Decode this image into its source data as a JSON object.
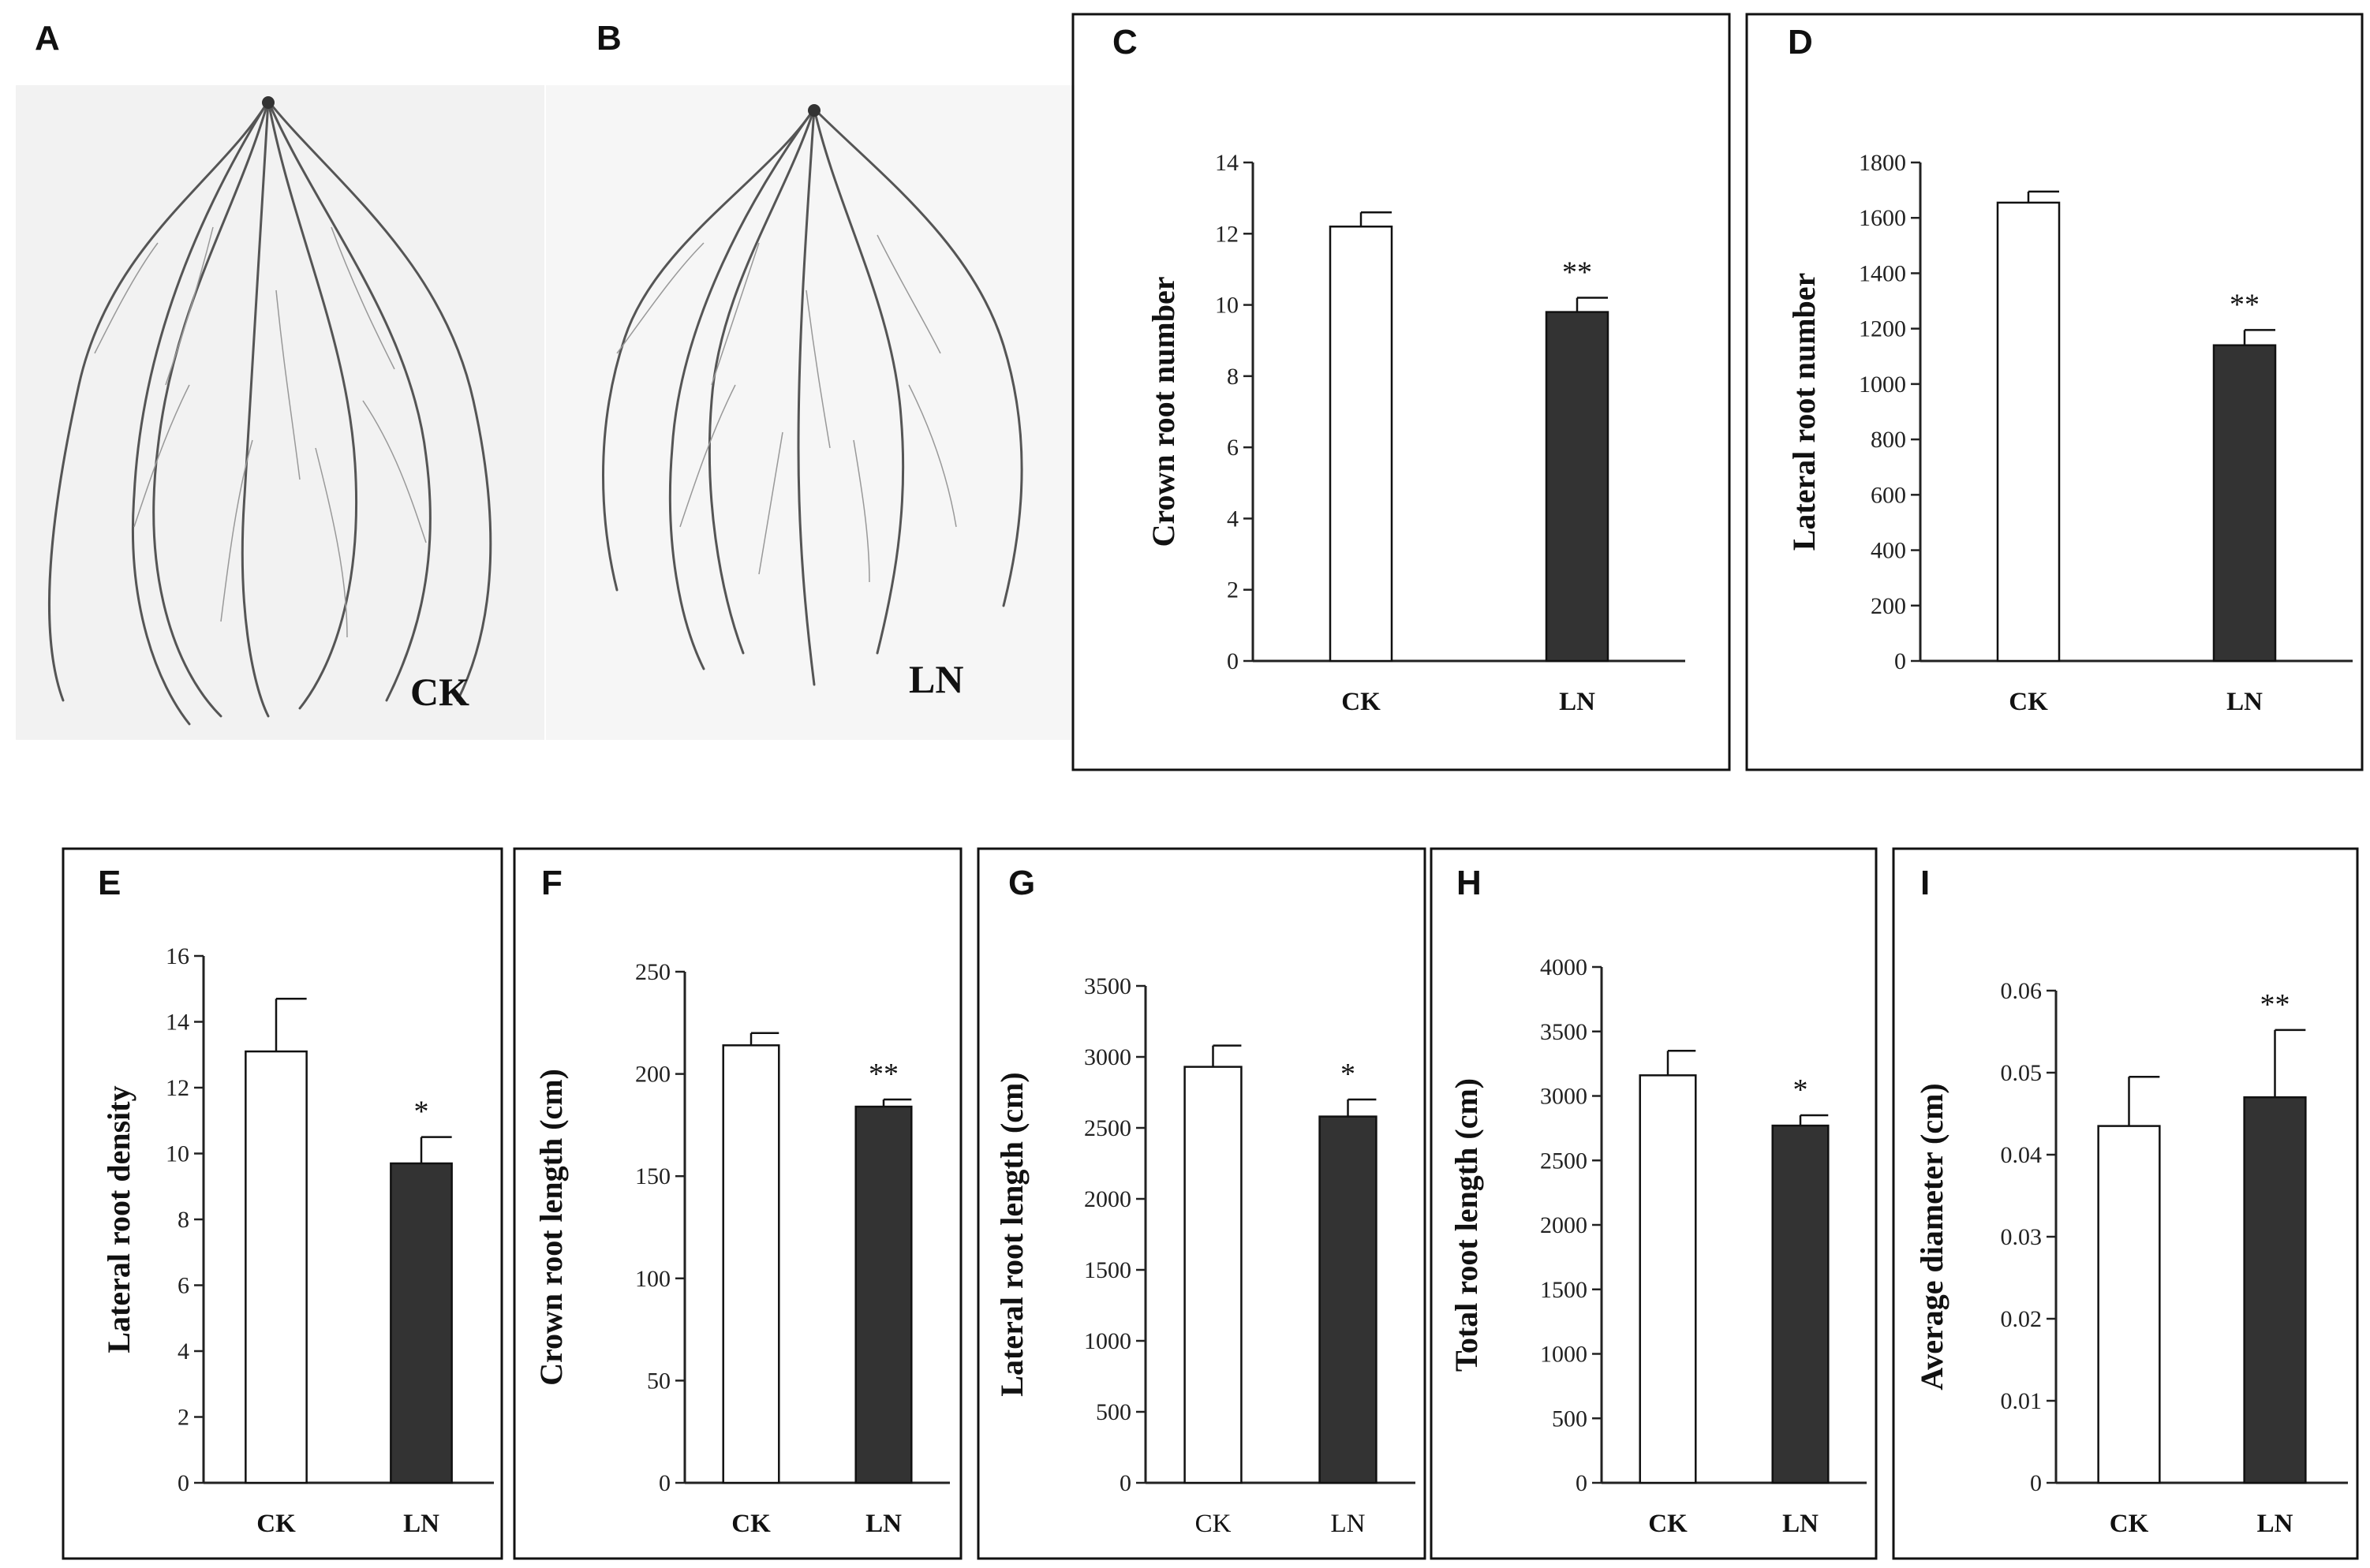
{
  "figure": {
    "photo_a": {
      "letter": "A",
      "label": "CK"
    },
    "photo_b": {
      "letter": "B",
      "label": "LN"
    }
  },
  "colors": {
    "ck_fill": "#ffffff",
    "ln_fill": "#333333",
    "axis": "#222222"
  },
  "chart_data": [
    {
      "id": "C",
      "letter": "C",
      "type": "bar",
      "title": "",
      "xlabel": "",
      "ylabel": "Crown root number",
      "categories": [
        "CK",
        "LN"
      ],
      "values": [
        12.2,
        9.8
      ],
      "errors": [
        0.4,
        0.4
      ],
      "significance": [
        "",
        "**"
      ],
      "ylim": [
        0,
        14
      ],
      "yticks": [
        0,
        2,
        4,
        6,
        8,
        10,
        12,
        14
      ],
      "grid": false,
      "legend": "none"
    },
    {
      "id": "D",
      "letter": "D",
      "type": "bar",
      "title": "",
      "xlabel": "",
      "ylabel": "Lateral root number",
      "categories": [
        "CK",
        "LN"
      ],
      "values": [
        1655,
        1140
      ],
      "errors": [
        40,
        55
      ],
      "significance": [
        "",
        "**"
      ],
      "ylim": [
        0,
        1800
      ],
      "yticks": [
        0,
        200,
        400,
        600,
        800,
        1000,
        1200,
        1400,
        1600,
        1800
      ],
      "grid": false,
      "legend": "none"
    },
    {
      "id": "E",
      "letter": "E",
      "type": "bar",
      "title": "",
      "xlabel": "",
      "ylabel": "Lateral root density",
      "categories": [
        "CK",
        "LN"
      ],
      "values": [
        13.1,
        9.7
      ],
      "errors": [
        1.6,
        0.8
      ],
      "significance": [
        "",
        "*"
      ],
      "ylim": [
        0,
        16
      ],
      "yticks": [
        0,
        2,
        4,
        6,
        8,
        10,
        12,
        14,
        16
      ],
      "grid": false,
      "legend": "none"
    },
    {
      "id": "F",
      "letter": "F",
      "type": "bar",
      "title": "",
      "xlabel": "",
      "ylabel": "Crown root length (cm)",
      "categories": [
        "CK",
        "LN"
      ],
      "values": [
        214,
        184
      ],
      "errors": [
        6,
        3.5
      ],
      "significance": [
        "",
        "**"
      ],
      "ylim": [
        0,
        250
      ],
      "yticks": [
        0,
        50,
        100,
        150,
        200,
        250
      ],
      "grid": false,
      "legend": "none"
    },
    {
      "id": "G",
      "letter": "G",
      "type": "bar",
      "title": "",
      "xlabel": "",
      "ylabel": "Lateral root length (cm)",
      "categories": [
        "CK",
        "LN"
      ],
      "values": [
        2930,
        2580
      ],
      "errors": [
        150,
        120
      ],
      "significance": [
        "",
        "*"
      ],
      "ylim": [
        0,
        3500
      ],
      "yticks": [
        0,
        500,
        1000,
        1500,
        2000,
        2500,
        3000,
        3500
      ],
      "grid": false,
      "legend": "none"
    },
    {
      "id": "H",
      "letter": "H",
      "type": "bar",
      "title": "",
      "xlabel": "",
      "ylabel": "Total root length (cm)",
      "categories": [
        "CK",
        "LN"
      ],
      "values": [
        3160,
        2770
      ],
      "errors": [
        190,
        80
      ],
      "significance": [
        "",
        "*"
      ],
      "ylim": [
        0,
        4000
      ],
      "yticks": [
        0,
        500,
        1000,
        1500,
        2000,
        2500,
        3000,
        3500,
        4000
      ],
      "grid": false,
      "legend": "none"
    },
    {
      "id": "I",
      "letter": "I",
      "type": "bar",
      "title": "",
      "xlabel": "",
      "ylabel": "Average diameter  (cm)",
      "categories": [
        "CK",
        "LN"
      ],
      "values": [
        0.0435,
        0.047
      ],
      "errors": [
        0.006,
        0.0082
      ],
      "significance": [
        "",
        "**"
      ],
      "ylim": [
        0,
        0.06
      ],
      "yticks": [
        0,
        0.01,
        0.02,
        0.03,
        0.04,
        0.05,
        0.06
      ],
      "grid": false,
      "legend": "none"
    }
  ]
}
